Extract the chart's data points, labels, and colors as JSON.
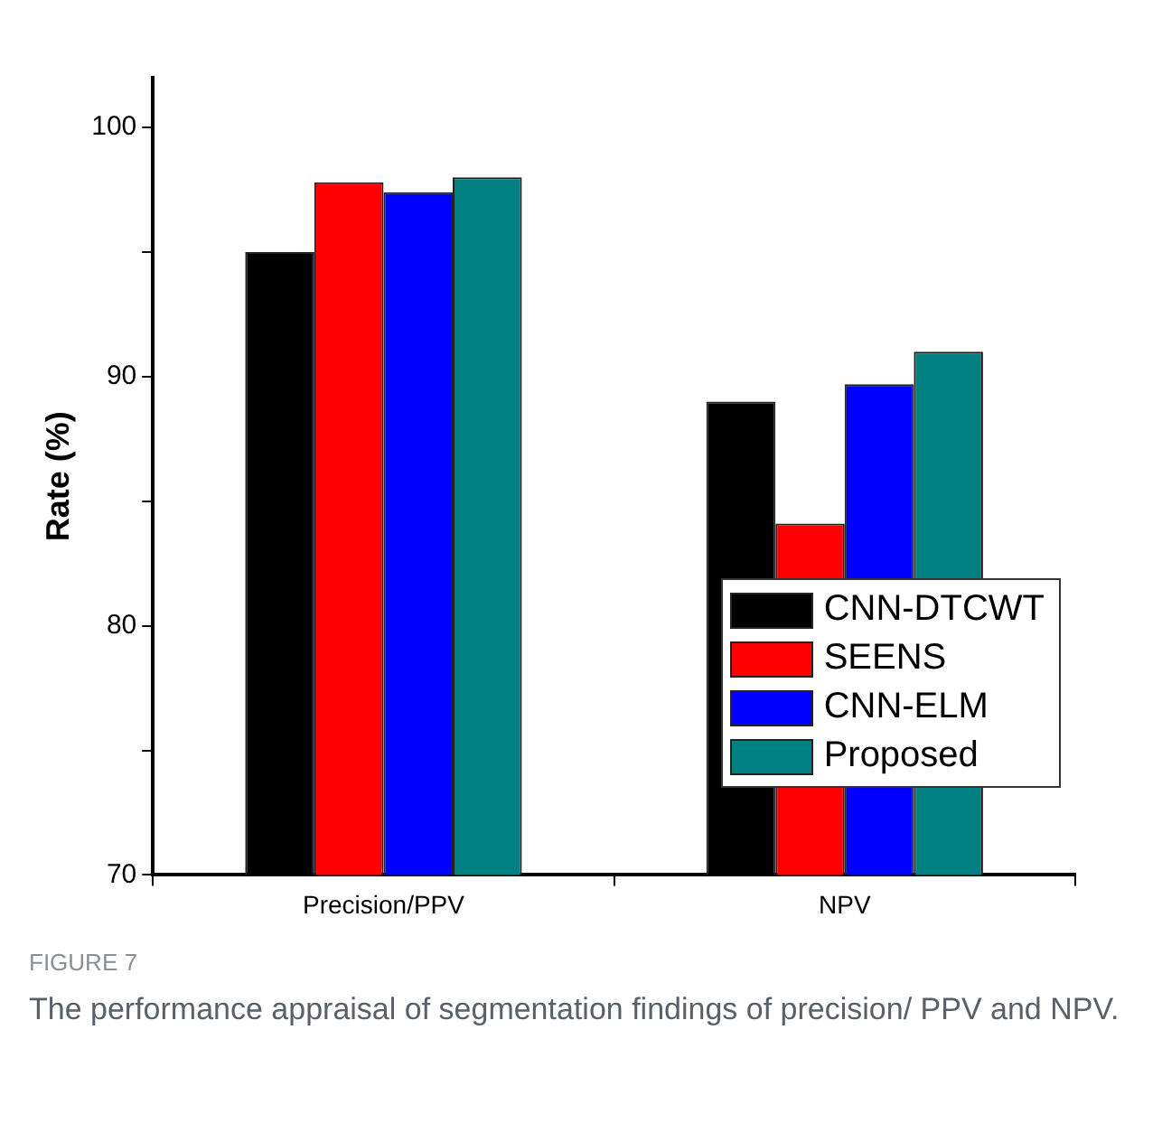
{
  "chart_data": {
    "type": "bar",
    "categories": [
      "Precision/PPV",
      "NPV"
    ],
    "ylabel": "Rate (%)",
    "series": [
      {
        "name": "CNN-DTCWT",
        "color": "#000000",
        "values": [
          95.0,
          89.0
        ]
      },
      {
        "name": "SEENS",
        "color": "#ff0000",
        "values": [
          97.8,
          84.1
        ]
      },
      {
        "name": "CNN-ELM",
        "color": "#0000ff",
        "values": [
          97.4,
          89.7
        ]
      },
      {
        "name": "Proposed",
        "color": "#008080",
        "values": [
          98.0,
          91.0
        ]
      }
    ],
    "ylim": [
      70,
      102
    ],
    "yticks": [
      70,
      {
        "value": 75,
        "label": null
      },
      80,
      {
        "value": 85,
        "label": null
      },
      90,
      {
        "value": 95,
        "label": null
      },
      100
    ],
    "grid": false,
    "legend": "right",
    "annotations": [
      "FIGURE 7",
      "The performance appraisal of segmentation findings of precision/ PPV and NPV."
    ]
  }
}
